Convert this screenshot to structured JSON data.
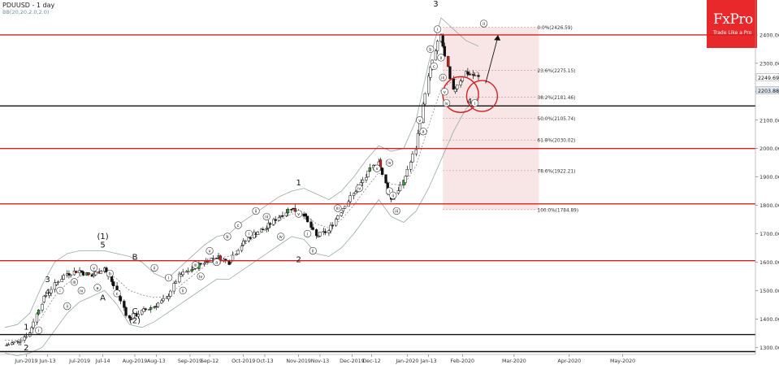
{
  "header": {
    "symbol_title": "PDUUSD  - 1 day",
    "indicator_label": "BB(20,20,2.0,2.0)"
  },
  "logo": {
    "brand": "FxPro",
    "tagline": "Trade Like a Pro"
  },
  "chart_data": {
    "type": "candlestick",
    "instrument": "PDUUSD",
    "timeframe": "1 day",
    "ylim": [
      1275,
      2500
    ],
    "grid": false,
    "y_ticks": [
      1300,
      1400,
      1500,
      1600,
      1700,
      1800,
      1900,
      2000,
      2100,
      2200,
      2300,
      2400
    ],
    "x_ticks": [
      "Jun-2019",
      "Jun-13",
      "Jul-2019",
      "Jul-14",
      "Aug-2019",
      "Aug-13",
      "Sep-2019",
      "Sep-12",
      "Oct-2019",
      "Oct-13",
      "Nov-2019",
      "Nov-13",
      "Dec-2019",
      "Dec-12",
      "Jan-2020",
      "Jan-13",
      "Feb-2020",
      "Mar-2020",
      "Apr-2020",
      "May-2020"
    ],
    "price_labels": [
      {
        "value": 2249.69,
        "label": "2249.69"
      },
      {
        "value": 2203.88,
        "label": "2203.88"
      }
    ],
    "colors": {
      "support_resistance": "#d42020",
      "key_level": "#111111",
      "fib_zone": "#f6dede",
      "bollinger": "#9aa7aa",
      "bull": "#33aa33",
      "bear": "#cc2222"
    },
    "horizontal_levels": [
      {
        "value": 2400,
        "color": "red"
      },
      {
        "value": 2150,
        "color": "black"
      },
      {
        "value": 2000,
        "color": "red"
      },
      {
        "value": 1805,
        "color": "red"
      },
      {
        "value": 1605,
        "color": "red"
      },
      {
        "value": 1345,
        "color": "black"
      },
      {
        "value": 1285,
        "color": "black"
      }
    ],
    "fibonacci": [
      {
        "label": "0.0%(2426.59)",
        "value": 2426.59
      },
      {
        "label": "23.6%(2275.15)",
        "value": 2275.15
      },
      {
        "label": "38.2%(2181.46)",
        "value": 2181.46
      },
      {
        "label": "50.0%(2105.74)",
        "value": 2105.74
      },
      {
        "label": "61.8%(2030.02)",
        "value": 2030.02
      },
      {
        "label": "78.6%(1922.21)",
        "value": 1922.21
      },
      {
        "label": "100.0%(1784.89)",
        "value": 1784.89
      }
    ],
    "wave_labels_major": [
      {
        "text": "1",
        "date": "Jun-2019",
        "price": 1362
      },
      {
        "text": "2",
        "date": "Jun-2019",
        "price": 1290
      },
      {
        "text": "3",
        "date": "Jun-13",
        "price": 1530
      },
      {
        "text": "4",
        "date": "Jun-13",
        "price": 1485
      },
      {
        "text": "(1)",
        "date": "Jul-14",
        "price": 1682
      },
      {
        "text": "5",
        "date": "Jul-14",
        "price": 1651
      },
      {
        "text": "A",
        "date": "Jul-14",
        "price": 1465
      },
      {
        "text": "B",
        "date": "Aug-2019",
        "price": 1608
      },
      {
        "text": "C",
        "date": "Aug-2019",
        "price": 1418
      },
      {
        "text": "(2)",
        "date": "Aug-2019",
        "price": 1385
      },
      {
        "text": "1",
        "date": "Nov-2019",
        "price": 1870
      },
      {
        "text": "2",
        "date": "Nov-2019",
        "price": 1600
      },
      {
        "text": "3",
        "date": "Jan-13",
        "price": 2500
      },
      {
        "text": "4",
        "date": "Feb-2020",
        "price": 2157
      }
    ],
    "wave_labels_minor": [
      "i",
      "ii",
      "iii",
      "iv",
      "v",
      "a",
      "b",
      "c",
      "i",
      "ii",
      "iii",
      "iv",
      "v",
      "a",
      "b",
      "c",
      "i",
      "ii",
      "iii",
      "iv",
      "v",
      "i",
      "ii",
      "iii",
      "iv",
      "v",
      "i",
      "ii",
      "iii",
      "iv",
      "v",
      "a",
      "b",
      "c",
      "i",
      "ii",
      "iii",
      "iv",
      "v",
      "i",
      "ii",
      "i",
      "ii"
    ],
    "series": [
      {
        "name": "PDUUSD",
        "type": "candlestick",
        "x": [
          "2019-05-20",
          "2019-05-27",
          "2019-06-03",
          "2019-06-10",
          "2019-06-17",
          "2019-06-24",
          "2019-07-01",
          "2019-07-08",
          "2019-07-15",
          "2019-07-22",
          "2019-07-29",
          "2019-08-05",
          "2019-08-12",
          "2019-08-19",
          "2019-08-26",
          "2019-09-02",
          "2019-09-09",
          "2019-09-16",
          "2019-09-23",
          "2019-09-30",
          "2019-10-07",
          "2019-10-14",
          "2019-10-21",
          "2019-10-28",
          "2019-11-04",
          "2019-11-11",
          "2019-11-18",
          "2019-11-25",
          "2019-12-02",
          "2019-12-09",
          "2019-12-16",
          "2019-12-23",
          "2019-12-30",
          "2020-01-06",
          "2020-01-13",
          "2020-01-20",
          "2020-01-27",
          "2020-02-03",
          "2020-02-10"
        ],
        "close": [
          1305,
          1320,
          1350,
          1460,
          1520,
          1560,
          1570,
          1550,
          1580,
          1500,
          1400,
          1425,
          1445,
          1470,
          1550,
          1575,
          1600,
          1620,
          1600,
          1660,
          1700,
          1720,
          1760,
          1790,
          1770,
          1690,
          1710,
          1780,
          1840,
          1900,
          1960,
          1820,
          1880,
          2000,
          2250,
          2400,
          2200,
          2270,
          2250
        ]
      }
    ],
    "envelopes": [
      {
        "type": "bollinger_upper",
        "values": [
          1370,
          1380,
          1420,
          1520,
          1600,
          1630,
          1640,
          1640,
          1640,
          1630,
          1620,
          1600,
          1560,
          1540,
          1580,
          1620,
          1660,
          1690,
          1700,
          1740,
          1770,
          1800,
          1830,
          1850,
          1860,
          1840,
          1820,
          1850,
          1900,
          1960,
          2010,
          1990,
          2000,
          2100,
          2300,
          2460,
          2420,
          2380,
          2360
        ]
      },
      {
        "type": "bollinger_lower",
        "values": [
          1280,
          1270,
          1280,
          1300,
          1360,
          1420,
          1460,
          1480,
          1500,
          1450,
          1380,
          1370,
          1390,
          1420,
          1450,
          1480,
          1510,
          1540,
          1540,
          1570,
          1600,
          1630,
          1660,
          1690,
          1680,
          1630,
          1620,
          1650,
          1700,
          1760,
          1820,
          1760,
          1740,
          1780,
          1860,
          1960,
          2060,
          2140,
          2180
        ]
      }
    ]
  }
}
